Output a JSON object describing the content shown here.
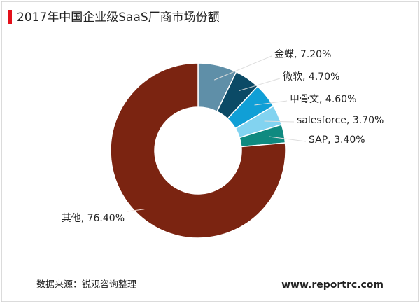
{
  "chart_data": {
    "type": "pie",
    "donut": true,
    "title": "2017年中国企业级SaaS厂商市场份额",
    "categories": [
      "金蝶",
      "微软",
      "甲骨文",
      "salesforce",
      "SAP",
      "其他"
    ],
    "values": [
      7.2,
      4.7,
      4.6,
      3.7,
      3.4,
      76.4
    ],
    "value_labels": [
      "7.20%",
      "4.70%",
      "4.60%",
      "3.70%",
      "3.40%",
      "76.40%"
    ],
    "label_separator": ", ",
    "colors": [
      "#5f8fa8",
      "#0b4a66",
      "#109fd6",
      "#82d3f0",
      "#0f8a80",
      "#7b2411"
    ],
    "source": "数据来源：锐观咨询整理",
    "website": "www.reportrc.com"
  }
}
